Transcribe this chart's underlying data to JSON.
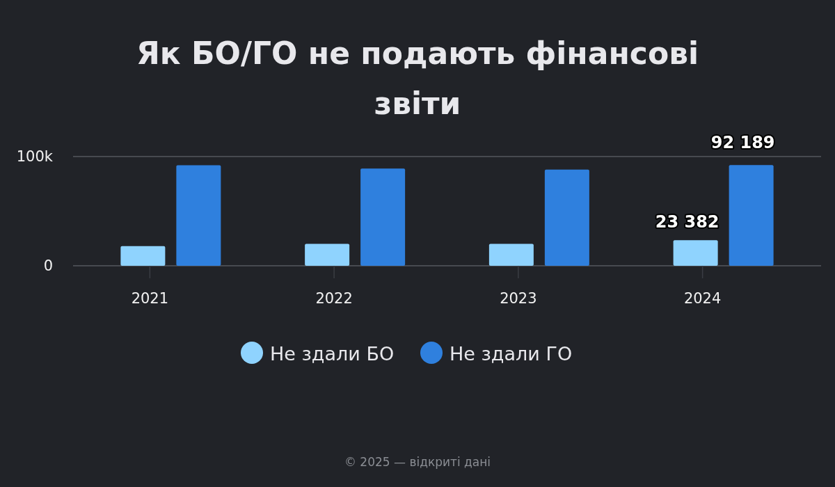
{
  "chart_data": {
    "type": "bar",
    "title": "Як БО/ГО не подають фінансові звіти",
    "categories": [
      "2021",
      "2022",
      "2023",
      "2024"
    ],
    "series": [
      {
        "name": "Не здали БО",
        "color": "#8fd3fe",
        "values": [
          18000,
          20000,
          20000,
          23382
        ],
        "value_labels": [
          null,
          null,
          null,
          "23 382"
        ]
      },
      {
        "name": "Не здали ГО",
        "color": "#2f80de",
        "values": [
          92000,
          89000,
          88000,
          92189
        ],
        "value_labels": [
          null,
          null,
          null,
          "92 189"
        ]
      }
    ],
    "ylim": [
      0,
      100000
    ],
    "yticks": [
      0,
      {
        "value": 100000,
        "label": "100k"
      }
    ],
    "legend": "bottom",
    "annotations": [
      "© 2025 — відкриті дані"
    ]
  }
}
